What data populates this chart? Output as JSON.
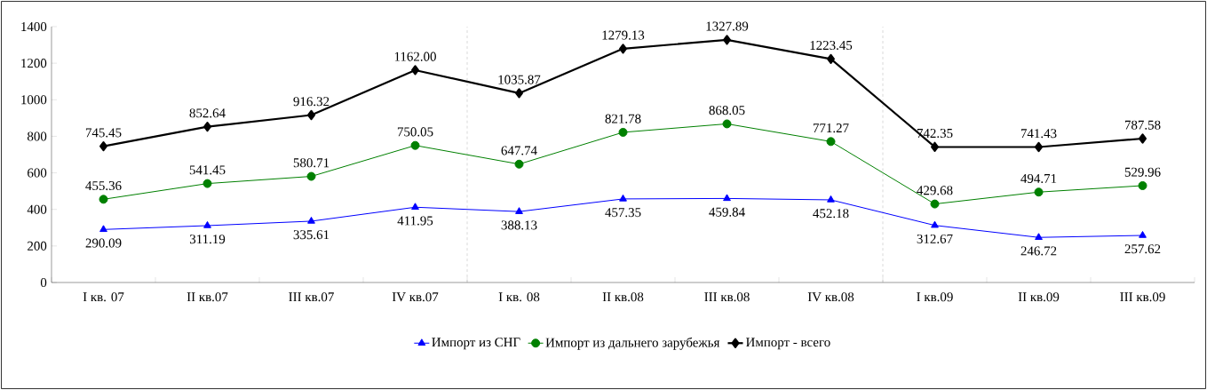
{
  "chart_data": {
    "type": "line",
    "categories": [
      "I кв. 07",
      "II кв.07",
      "III кв.07",
      "IV кв.07",
      "I кв. 08",
      "II кв.08",
      "III кв.08",
      "IV кв.08",
      "I кв.09",
      "II кв.09",
      "III кв.09"
    ],
    "series": [
      {
        "name": "Импорт из СНГ",
        "color": "#0000ff",
        "marker": "triangle",
        "values": [
          290.09,
          311.19,
          335.61,
          411.95,
          388.13,
          457.35,
          459.84,
          452.18,
          312.67,
          246.72,
          257.62
        ],
        "value_labels": [
          "290.09",
          "311.19",
          "335.61",
          "411.95",
          "388.13",
          "457.35",
          "459.84",
          "452.18",
          "312.67",
          "246.72",
          "257.62"
        ]
      },
      {
        "name": "Импорт из дальнего зарубежья",
        "color": "#008000",
        "marker": "circle",
        "values": [
          455.36,
          541.45,
          580.71,
          750.05,
          647.74,
          821.78,
          868.05,
          771.27,
          429.68,
          494.71,
          529.96
        ],
        "value_labels": [
          "455.36",
          "541.45",
          "580.71",
          "750.05",
          "647.74",
          "821.78",
          "868.05",
          "771.27",
          "429.68",
          "494.71",
          "529.96"
        ]
      },
      {
        "name": "Импорт - всего",
        "color": "#000000",
        "marker": "diamond",
        "values": [
          745.45,
          852.64,
          916.32,
          1162.0,
          1035.87,
          1279.13,
          1327.89,
          1223.45,
          742.35,
          741.43,
          787.58
        ],
        "value_labels": [
          "745.45",
          "852.64",
          "916.32",
          "1162.00",
          "1035.87",
          "1279.13",
          "1327.89",
          "1223.45",
          "742.35",
          "741.43",
          "787.58"
        ]
      }
    ],
    "ylim": [
      0,
      1400
    ],
    "yticks": [
      0,
      200,
      400,
      600,
      800,
      1000,
      1200,
      1400
    ],
    "grid": false,
    "legend": "bottom",
    "line_style": "solid"
  }
}
